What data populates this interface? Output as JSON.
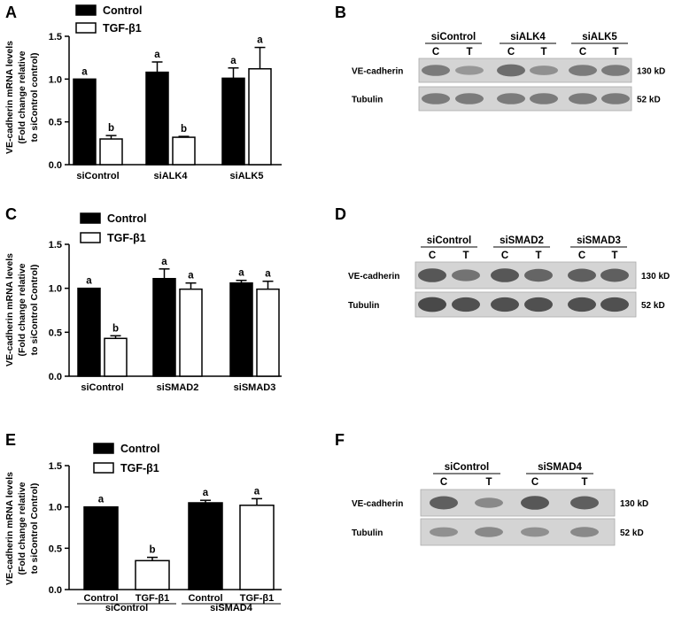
{
  "chart_data": [
    {
      "panel": "A",
      "type": "bar",
      "ylabel": [
        "VE-cadherin mRNA levels",
        "(Fold change relative",
        "to siControl control)"
      ],
      "ylim": [
        0,
        1.5
      ],
      "yticks": [
        "0.0",
        "0.5",
        "1.0",
        "1.5"
      ],
      "categories": [
        "siControl",
        "siALK4",
        "siALK5"
      ],
      "series": [
        {
          "name": "Control",
          "fill": "#000000",
          "values": [
            1.0,
            1.08,
            1.01
          ],
          "errors": [
            0.0,
            0.12,
            0.12
          ],
          "sig": [
            "a",
            "a",
            "a"
          ]
        },
        {
          "name": "TGF-β1",
          "fill": "#ffffff",
          "values": [
            0.3,
            0.32,
            1.12
          ],
          "errors": [
            0.04,
            0.01,
            0.25
          ],
          "sig": [
            "b",
            "b",
            "a"
          ]
        }
      ],
      "legend": "top-left"
    },
    {
      "panel": "C",
      "type": "bar",
      "ylabel": [
        "VE-cadherin mRNA levels",
        "(Fold change relative",
        "to siControl Control)"
      ],
      "ylim": [
        0,
        1.5
      ],
      "yticks": [
        "0.0",
        "0.5",
        "1.0",
        "1.5"
      ],
      "categories": [
        "siControl",
        "siSMAD2",
        "siSMAD3"
      ],
      "series": [
        {
          "name": "Control",
          "fill": "#000000",
          "values": [
            1.0,
            1.11,
            1.06
          ],
          "errors": [
            0.0,
            0.11,
            0.03
          ],
          "sig": [
            "a",
            "a",
            "a"
          ]
        },
        {
          "name": "TGF-β1",
          "fill": "#ffffff",
          "values": [
            0.43,
            0.99,
            0.99
          ],
          "errors": [
            0.03,
            0.07,
            0.09
          ],
          "sig": [
            "b",
            "a",
            "a"
          ]
        }
      ],
      "legend": "top-left"
    },
    {
      "panel": "E",
      "type": "bar",
      "ylabel": [
        "VE-cadherin mRNA levels",
        "(Fold change relative",
        "to siControl Control)"
      ],
      "ylim": [
        0,
        1.5
      ],
      "yticks": [
        "0.0",
        "0.5",
        "1.0",
        "1.5"
      ],
      "categories": [
        "siControl",
        "siSMAD4"
      ],
      "bar_labels": [
        "Control",
        "TGF-β1"
      ],
      "series": [
        {
          "name": "Control",
          "fill": "#000000",
          "values": [
            1.0,
            1.05
          ],
          "errors": [
            0.0,
            0.03
          ],
          "sig": [
            "a",
            "a"
          ]
        },
        {
          "name": "TGF-β1",
          "fill": "#ffffff",
          "values": [
            0.35,
            1.02
          ],
          "errors": [
            0.04,
            0.08
          ],
          "sig": [
            "b",
            "a"
          ]
        }
      ],
      "legend": "top"
    }
  ],
  "blots": [
    {
      "panel": "B",
      "groups": [
        "siControl",
        "siALK4",
        "siALK5"
      ],
      "lanes": [
        "C",
        "T",
        "C",
        "T",
        "C",
        "T"
      ],
      "rows": [
        {
          "label": "VE-cadherin",
          "size": "130 kD",
          "intensity": [
            0.55,
            0.35,
            0.65,
            0.4,
            0.55,
            0.55
          ]
        },
        {
          "label": "Tubulin",
          "size": "52 kD",
          "intensity": [
            0.55,
            0.55,
            0.55,
            0.55,
            0.55,
            0.55
          ]
        }
      ]
    },
    {
      "panel": "D",
      "groups": [
        "siControl",
        "siSMAD2",
        "siSMAD3"
      ],
      "lanes": [
        "C",
        "T",
        "C",
        "T",
        "C",
        "T"
      ],
      "rows": [
        {
          "label": "VE-cadherin",
          "size": "130 kD",
          "intensity": [
            0.8,
            0.6,
            0.8,
            0.7,
            0.75,
            0.75
          ]
        },
        {
          "label": "Tubulin",
          "size": "52 kD",
          "intensity": [
            0.9,
            0.85,
            0.85,
            0.85,
            0.85,
            0.85
          ]
        }
      ]
    },
    {
      "panel": "F",
      "groups": [
        "siControl",
        "siSMAD4"
      ],
      "lanes": [
        "C",
        "T",
        "C",
        "T"
      ],
      "rows": [
        {
          "label": "VE-cadherin",
          "size": "130 kD",
          "intensity": [
            0.75,
            0.45,
            0.8,
            0.75
          ]
        },
        {
          "label": "Tubulin",
          "size": "52 kD",
          "intensity": [
            0.4,
            0.45,
            0.4,
            0.45
          ]
        }
      ]
    }
  ]
}
